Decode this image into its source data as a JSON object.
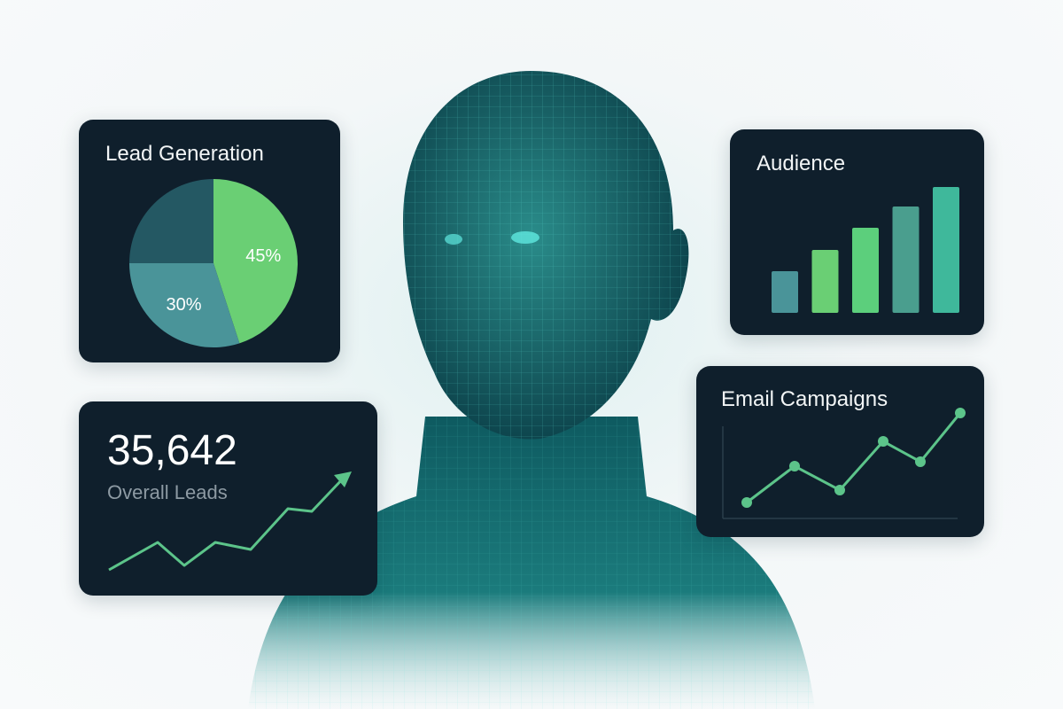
{
  "colors": {
    "card_bg": "#0f1f2c",
    "green": "#6acf74",
    "teal": "#4a9499",
    "dark_teal": "#245863",
    "line": "#5cc48a",
    "bar_teal": "#3fb89b"
  },
  "lead_generation": {
    "title": "Lead Generation",
    "chart_data": {
      "type": "pie",
      "slices": [
        {
          "value": 45,
          "label": "45%",
          "color": "#6acf74"
        },
        {
          "value": 30,
          "label": "30%",
          "color": "#4a9499"
        },
        {
          "value": 25,
          "label": "",
          "color": "#245863"
        }
      ]
    }
  },
  "audience": {
    "title": "Audience",
    "chart_data": {
      "type": "bar",
      "values": [
        47,
        71,
        96,
        120,
        142
      ],
      "colors": [
        "#4a9499",
        "#6acf74",
        "#5ccf7c",
        "#4a9e8e",
        "#3fb89b"
      ]
    }
  },
  "overall_leads": {
    "value": "35,642",
    "label": "Overall Leads",
    "chart_data": {
      "type": "line",
      "values": [
        17,
        48,
        22,
        48,
        40,
        86,
        83,
        122
      ],
      "arrow": true
    }
  },
  "email_campaigns": {
    "title": "Email Campaigns",
    "chart_data": {
      "type": "line",
      "values": [
        18,
        59,
        32,
        87,
        64,
        119
      ],
      "markers": true
    }
  }
}
